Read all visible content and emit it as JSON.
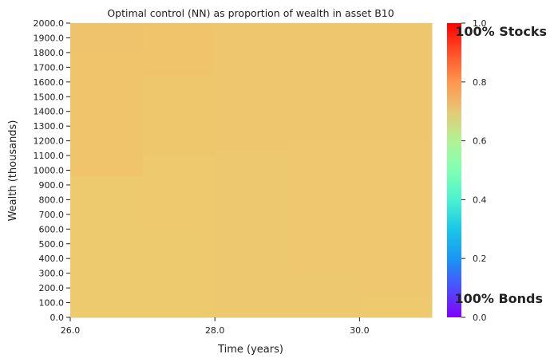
{
  "chart_data": {
    "type": "heatmap",
    "title": "Optimal control (NN) as proportion of wealth in asset B10",
    "xlabel": "Time (years)",
    "ylabel": "Wealth (thousands)",
    "x_tick_labels": [
      "26.0",
      "28.0",
      "30.0"
    ],
    "x_ticks": [
      26,
      28,
      30
    ],
    "xlim": [
      26,
      31
    ],
    "y_tick_labels": [
      "0.0",
      "100.0",
      "200.0",
      "300.0",
      "400.0",
      "500.0",
      "600.0",
      "700.0",
      "800.0",
      "900.0",
      "1000.0",
      "1100.0",
      "1200.0",
      "1300.0",
      "1400.0",
      "1500.0",
      "1600.0",
      "1700.0",
      "1800.0",
      "1900.0",
      "2000.0"
    ],
    "ylim": [
      0,
      2000
    ],
    "colormap": "rainbow",
    "colorbar": {
      "min": 0.0,
      "max": 1.0,
      "tick_labels": [
        "0.0",
        "0.2",
        "0.4",
        "0.6",
        "0.8",
        "1.0"
      ],
      "top_annotation": "100% Stocks",
      "bottom_annotation": "100% Bonds"
    },
    "cells": [
      {
        "t0": 26,
        "t1": 27,
        "w0": 0,
        "w1": 960,
        "value": 0.7
      },
      {
        "t0": 26,
        "t1": 27,
        "w0": 960,
        "w1": 1800,
        "value": 0.76
      },
      {
        "t0": 26,
        "t1": 27,
        "w0": 1800,
        "w1": 2000,
        "value": 0.765
      },
      {
        "t0": 27,
        "t1": 28,
        "w0": 0,
        "w1": 600,
        "value": 0.705
      },
      {
        "t0": 27,
        "t1": 28,
        "w0": 600,
        "w1": 1100,
        "value": 0.715
      },
      {
        "t0": 27,
        "t1": 28,
        "w0": 1100,
        "w1": 1650,
        "value": 0.73
      },
      {
        "t0": 27,
        "t1": 28,
        "w0": 1650,
        "w1": 2000,
        "value": 0.755
      },
      {
        "t0": 28,
        "t1": 29,
        "w0": 0,
        "w1": 1150,
        "value": 0.72
      },
      {
        "t0": 28,
        "t1": 29,
        "w0": 1150,
        "w1": 2000,
        "value": 0.735
      },
      {
        "t0": 29,
        "t1": 30,
        "w0": 0,
        "w1": 300,
        "value": 0.72
      },
      {
        "t0": 29,
        "t1": 30,
        "w0": 300,
        "w1": 1200,
        "value": 0.725
      },
      {
        "t0": 29,
        "t1": 30,
        "w0": 1200,
        "w1": 2000,
        "value": 0.735
      },
      {
        "t0": 30,
        "t1": 31,
        "w0": 0,
        "w1": 150,
        "value": 0.715
      },
      {
        "t0": 30,
        "t1": 31,
        "w0": 150,
        "w1": 1200,
        "value": 0.725
      },
      {
        "t0": 30,
        "t1": 31,
        "w0": 1200,
        "w1": 2000,
        "value": 0.735
      }
    ]
  }
}
